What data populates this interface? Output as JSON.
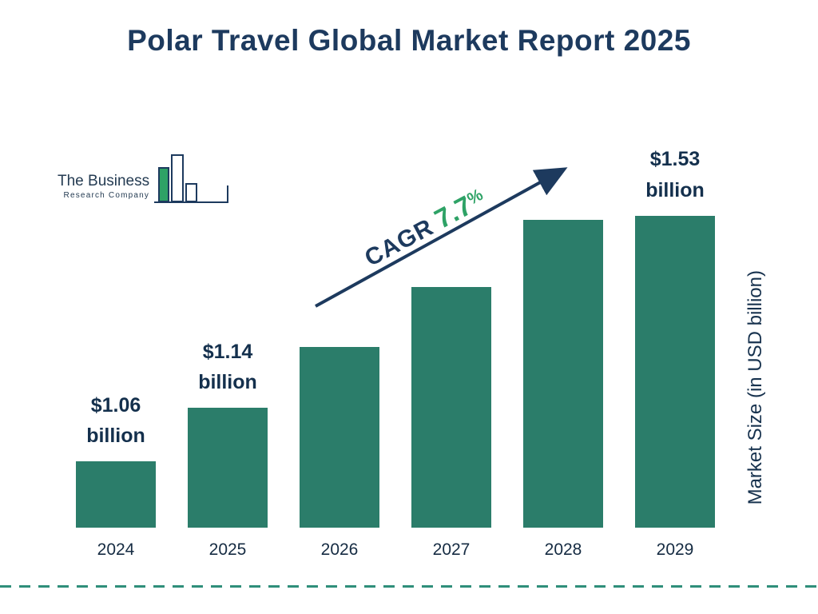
{
  "title": "Polar Travel Global Market Report 2025",
  "logo": {
    "line1": "The Business",
    "line2": "Research Company"
  },
  "cagr": {
    "label": "CAGR",
    "value": "7.7",
    "percent": "%"
  },
  "ylabel": "Market Size (in USD billion)",
  "chart_data": {
    "type": "bar",
    "title": "Polar Travel Global Market Report 2025",
    "categories": [
      "2024",
      "2025",
      "2026",
      "2027",
      "2028",
      "2029"
    ],
    "values": [
      1.06,
      1.14,
      1.23,
      1.32,
      1.42,
      1.53
    ],
    "bar_labels": [
      [
        "$1.06",
        "billion"
      ],
      [
        "$1.14",
        "billion"
      ],
      null,
      null,
      null,
      [
        "$1.53",
        "billion"
      ]
    ],
    "xlabel": "",
    "ylabel": "Market Size (in USD billion)",
    "annotations": [
      "CAGR 7.7%"
    ],
    "legend": null,
    "grid": false,
    "colors": {
      "bar": "#2b7d6a",
      "navy": "#1d3a5e",
      "green": "#2ea266",
      "dash": "#2f8f7a"
    }
  }
}
